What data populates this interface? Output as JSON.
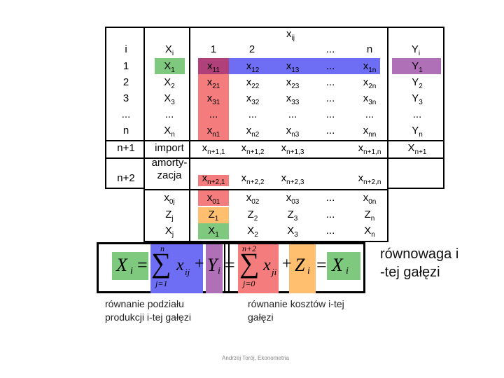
{
  "table": {
    "xij_label": "x",
    "xij_sub": "ij",
    "header": {
      "i": "i",
      "xi": "X",
      "xi_sub": "i",
      "c1": "1",
      "c2": "2",
      "cdots": "...",
      "cn": "n",
      "yi": "Y",
      "yi_sub": "i"
    },
    "i_col": [
      "1",
      "2",
      "3",
      "...",
      "n",
      "n+1",
      "n+2"
    ],
    "xi_col": [
      {
        "b": "X",
        "s": "1"
      },
      {
        "b": "X",
        "s": "2"
      },
      {
        "b": "X",
        "s": "3"
      },
      {
        "b": "...",
        "s": ""
      },
      {
        "b": "X",
        "s": "n"
      },
      {
        "b": "import",
        "s": ""
      },
      {
        "b": "amorty-\nzacja",
        "s": ""
      }
    ],
    "c1_col": [
      {
        "b": "x",
        "s": "11"
      },
      {
        "b": "x",
        "s": "21"
      },
      {
        "b": "x",
        "s": "31"
      },
      {
        "b": "...",
        "s": ""
      },
      {
        "b": "x",
        "s": "n1"
      },
      {
        "b": "x",
        "s": "n+1,1"
      },
      {
        "b": "x",
        "s": "n+2,1"
      }
    ],
    "c2_col": [
      {
        "b": "x",
        "s": "12"
      },
      {
        "b": "x",
        "s": "22"
      },
      {
        "b": "x",
        "s": "32"
      },
      {
        "b": "...",
        "s": ""
      },
      {
        "b": "x",
        "s": "n2"
      },
      {
        "b": "x",
        "s": "n+1,2"
      },
      {
        "b": "x",
        "s": "n+2,2"
      }
    ],
    "c3_col": [
      {
        "b": "x",
        "s": "13"
      },
      {
        "b": "x",
        "s": "23"
      },
      {
        "b": "x",
        "s": "33"
      },
      {
        "b": "...",
        "s": ""
      },
      {
        "b": "x",
        "s": "n3"
      },
      {
        "b": "x",
        "s": "n+1,3"
      },
      {
        "b": "x",
        "s": "n+2,3"
      }
    ],
    "cdots_col": [
      "...",
      "...",
      "...",
      "...",
      "...",
      "",
      ""
    ],
    "cn_col": [
      {
        "b": "x",
        "s": "1n"
      },
      {
        "b": "x",
        "s": "2n"
      },
      {
        "b": "x",
        "s": "3n"
      },
      {
        "b": "...",
        "s": ""
      },
      {
        "b": "x",
        "s": "nn"
      },
      {
        "b": "x",
        "s": "n+1,n"
      },
      {
        "b": "x",
        "s": "n+2,n"
      }
    ],
    "yi_col": [
      {
        "b": "Y",
        "s": "1"
      },
      {
        "b": "Y",
        "s": "2"
      },
      {
        "b": "Y",
        "s": "3"
      },
      {
        "b": "...",
        "s": ""
      },
      {
        "b": "Y",
        "s": "n"
      },
      {
        "b": "X",
        "s": "n+1"
      },
      {
        "b": "",
        "s": ""
      }
    ],
    "bottom_rows": {
      "labels": [
        {
          "b": "x",
          "s": "0j"
        },
        {
          "b": "Z",
          "s": "j"
        },
        {
          "b": "X",
          "s": "j"
        }
      ],
      "c1": [
        {
          "b": "x",
          "s": "01"
        },
        {
          "b": "Z",
          "s": "1"
        },
        {
          "b": "X",
          "s": "1"
        }
      ],
      "c2": [
        {
          "b": "x",
          "s": "02"
        },
        {
          "b": "Z",
          "s": "2"
        },
        {
          "b": "X",
          "s": "2"
        }
      ],
      "c3": [
        {
          "b": "x",
          "s": "03"
        },
        {
          "b": "Z",
          "s": "3"
        },
        {
          "b": "X",
          "s": "3"
        }
      ],
      "cdots": [
        "...",
        "...",
        "..."
      ],
      "cn": [
        {
          "b": "x",
          "s": "0n"
        },
        {
          "b": "Z",
          "s": "n"
        },
        {
          "b": "X",
          "s": "n"
        }
      ]
    }
  },
  "equation": {
    "left": {
      "X": "X",
      "i": "i",
      "eq": "=",
      "sum": "∑",
      "top": "n",
      "bottom": "j=1",
      "x": "x",
      "ij": "ij",
      "plus": "+",
      "Y": "Y",
      "yi": "i"
    },
    "right": {
      "sum": "∑",
      "top": "n+2",
      "bottom": "j=0",
      "x": "x",
      "ji": "ji",
      "plus": "+",
      "Z": "Z",
      "zi": "i",
      "eq": "=",
      "X": "X",
      "xi": "i"
    },
    "mid_eq": "="
  },
  "captions": {
    "balance": "równowaga i\n-tej gałęzi",
    "split": "równanie podziału\nprodukcji i-tej gałęzi",
    "costs": "równanie kosztów i-tej\ngałęzi",
    "footer": "Andrzej Torój, Ekonometria"
  },
  "colors": {
    "green": "#7fc97f",
    "red": "#f47c7c",
    "blue": "#6e6ef5",
    "purple": "#b070b8",
    "orange": "#ffbf6e"
  }
}
